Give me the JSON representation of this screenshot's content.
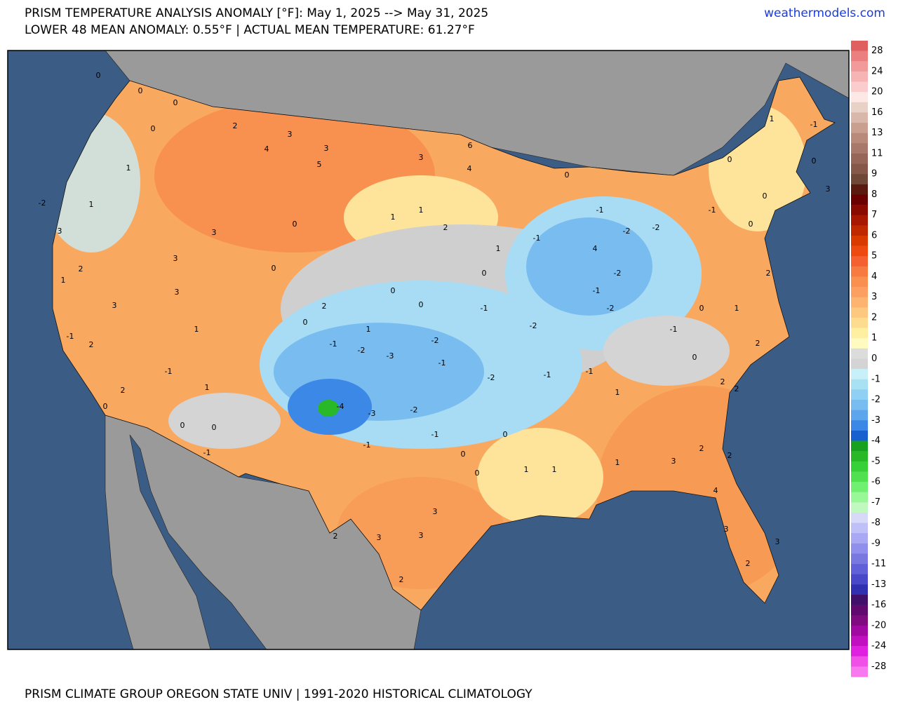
{
  "header": {
    "title_line1": "PRISM TEMPERATURE ANALYSIS ANOMALY [°F]: May 1, 2025 --> May 31, 2025",
    "title_line2": "LOWER 48 MEAN ANOMALY: 0.55°F | ACTUAL MEAN TEMPERATURE: 61.27°F",
    "site": "weathermodels.com"
  },
  "footer": "PRISM CLIMATE GROUP OREGON STATE UNIV | 1991-2020 HISTORICAL CLIMATOLOGY",
  "colorbar": {
    "ticks": [
      28,
      24,
      20,
      16,
      13,
      11,
      9,
      8,
      7,
      6,
      5,
      4,
      3,
      2,
      1,
      0,
      -1,
      -2,
      -3,
      -4,
      -5,
      -6,
      -7,
      -8,
      -9,
      -11,
      -13,
      -16,
      -20,
      -24,
      -28
    ],
    "colors": [
      "#e06060",
      "#ec8080",
      "#f29a9a",
      "#f7b4b4",
      "#fbcccc",
      "#fde8e6",
      "#e8d2c8",
      "#d9b8aa",
      "#c9a090",
      "#b98a7a",
      "#a8786a",
      "#986658",
      "#85584a",
      "#704838",
      "#5a1a10",
      "#6a0000",
      "#8a0a00",
      "#a81800",
      "#c02800",
      "#d83a00",
      "#ee4a10",
      "#f56030",
      "#f77a40",
      "#f99050",
      "#fba060",
      "#fcb470",
      "#fdc880",
      "#fddc90",
      "#fef0a0",
      "#fefac0",
      "#dcdcdc",
      "#d4d4d4",
      "#c8f0f8",
      "#a8e0f4",
      "#90d0f4",
      "#78bcf0",
      "#5ca6ee",
      "#3c88e6",
      "#1860d0",
      "#18a020",
      "#28b828",
      "#38d038",
      "#50e050",
      "#70f070",
      "#98f898",
      "#c0f8c0",
      "#d8d8f8",
      "#c0c0f8",
      "#a8a8f4",
      "#9090ec",
      "#7878e0",
      "#6060d8",
      "#4848c8",
      "#3030b0",
      "#40106a",
      "#600a70",
      "#800a80",
      "#a00aa0",
      "#c010c0",
      "#e020e0",
      "#f050e8",
      "#f878f0"
    ]
  },
  "map": {
    "labels": [
      3,
      3,
      4,
      5,
      3,
      6,
      4,
      2,
      0,
      0,
      1,
      1,
      2,
      3,
      3,
      3,
      3,
      2,
      2,
      1,
      0,
      0,
      2,
      0,
      -1,
      -2,
      -3,
      -1,
      -2,
      -2,
      -3,
      -2,
      -1,
      -1,
      -4,
      -1,
      -2,
      -1,
      -1,
      -1,
      -2,
      -2,
      -2,
      -1,
      1,
      0,
      0,
      1,
      0,
      1,
      1,
      2,
      0,
      1,
      1,
      1,
      3,
      4,
      3,
      3,
      2,
      3,
      3,
      2,
      3,
      2,
      0,
      0,
      2,
      2,
      2,
      2,
      2,
      2,
      1,
      0,
      -1,
      0,
      1,
      -1,
      0,
      1,
      0,
      3,
      0,
      0,
      0,
      4,
      -1,
      -2,
      -1,
      1,
      -1,
      0,
      0,
      -1,
      0,
      0,
      -2,
      3,
      1,
      -1,
      0
    ]
  }
}
